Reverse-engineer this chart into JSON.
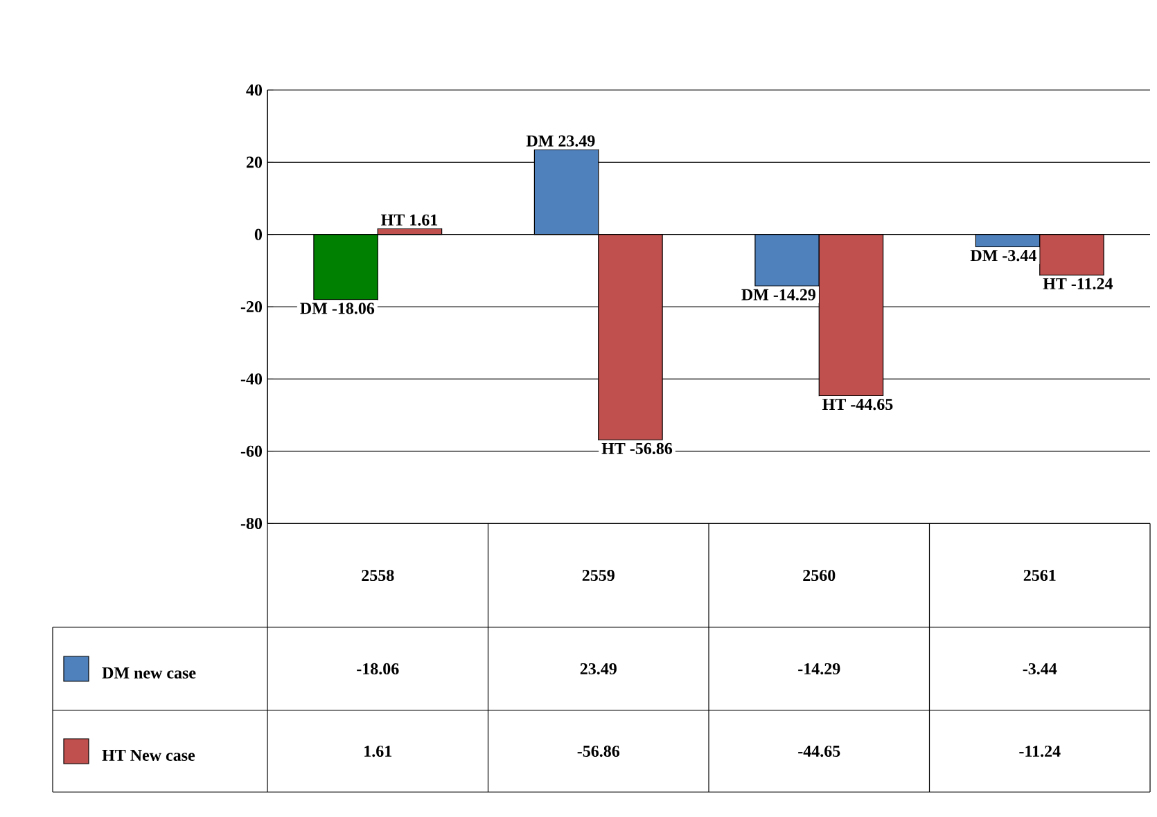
{
  "chart_data": {
    "type": "bar",
    "categories": [
      "2558",
      "2559",
      "2560",
      "2561"
    ],
    "series": [
      {
        "name": "DM new case",
        "color": "#4f81bd",
        "colors": [
          "#008000",
          "#4f81bd",
          "#4f81bd",
          "#4f81bd"
        ],
        "values": [
          -18.06,
          23.49,
          -14.29,
          -3.44
        ]
      },
      {
        "name": "HT New case",
        "color": "#c0504d",
        "colors": [
          "#c0504d",
          "#c0504d",
          "#c0504d",
          "#c0504d"
        ],
        "values": [
          1.61,
          -56.86,
          -44.65,
          -11.24
        ]
      }
    ],
    "annotations": [
      {
        "text": "DM -18.06",
        "x": "2558",
        "y": -18.06
      },
      {
        "text": "HT  1.61",
        "x": "2558",
        "y": 1.61
      },
      {
        "text": "DM 23.49",
        "x": "2559",
        "y": 23.49
      },
      {
        "text": "HT -56.86",
        "x": "2559",
        "y": -56.86
      },
      {
        "text": "DM -14.29",
        "x": "2560",
        "y": -14.29
      },
      {
        "text": "HT -44.65",
        "x": "2560",
        "y": -44.65
      },
      {
        "text": "DM -3.44",
        "x": "2561",
        "y": -3.44
      },
      {
        "text": "HT  -11.24",
        "x": "2561",
        "y": -11.24
      }
    ],
    "ylim": [
      -80,
      40
    ],
    "yticks": [
      -80,
      -60,
      -40,
      -20,
      0,
      20,
      40
    ],
    "grid": "y",
    "legend": "bottom",
    "data_labels": true
  }
}
